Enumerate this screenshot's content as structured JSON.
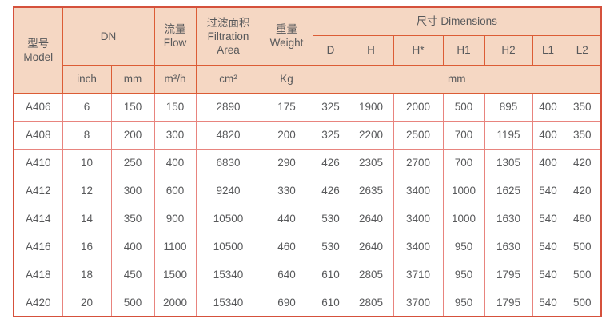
{
  "header": {
    "model": "型号\nModel",
    "dn": "DN",
    "flow": "流量\nFlow",
    "filtration": "过滤面积\nFiltration\nArea",
    "weight": "重量\nWeight",
    "dimensions": "尺寸 Dimensions",
    "dim_cols": [
      "D",
      "H",
      "H*",
      "H1",
      "H2",
      "L1",
      "L2"
    ],
    "units": {
      "inch": "inch",
      "mm": "mm",
      "flow": "m³/h",
      "area": "cm²",
      "weight": "Kg",
      "dims": "mm"
    }
  },
  "rows": [
    {
      "model": "A406",
      "inch": "6",
      "mm": "150",
      "flow": "150",
      "area": "2890",
      "weight": "175",
      "dims": [
        "325",
        "1900",
        "2000",
        "500",
        "895",
        "400",
        "350"
      ]
    },
    {
      "model": "A408",
      "inch": "8",
      "mm": "200",
      "flow": "300",
      "area": "4820",
      "weight": "200",
      "dims": [
        "325",
        "2200",
        "2500",
        "700",
        "1195",
        "400",
        "350"
      ]
    },
    {
      "model": "A410",
      "inch": "10",
      "mm": "250",
      "flow": "400",
      "area": "6830",
      "weight": "290",
      "dims": [
        "426",
        "2305",
        "2700",
        "700",
        "1305",
        "400",
        "420"
      ]
    },
    {
      "model": "A412",
      "inch": "12",
      "mm": "300",
      "flow": "600",
      "area": "9240",
      "weight": "330",
      "dims": [
        "426",
        "2635",
        "3400",
        "1000",
        "1625",
        "540",
        "420"
      ]
    },
    {
      "model": "A414",
      "inch": "14",
      "mm": "350",
      "flow": "900",
      "area": "10500",
      "weight": "440",
      "dims": [
        "530",
        "2640",
        "3400",
        "1000",
        "1630",
        "540",
        "480"
      ]
    },
    {
      "model": "A416",
      "inch": "16",
      "mm": "400",
      "flow": "1100",
      "area": "10500",
      "weight": "460",
      "dims": [
        "530",
        "2640",
        "3400",
        "950",
        "1630",
        "540",
        "500"
      ]
    },
    {
      "model": "A418",
      "inch": "18",
      "mm": "450",
      "flow": "1500",
      "area": "15340",
      "weight": "640",
      "dims": [
        "610",
        "2805",
        "3710",
        "950",
        "1795",
        "540",
        "500"
      ]
    },
    {
      "model": "A420",
      "inch": "20",
      "mm": "500",
      "flow": "2000",
      "area": "15340",
      "weight": "690",
      "dims": [
        "610",
        "2805",
        "3700",
        "950",
        "1795",
        "540",
        "500"
      ]
    }
  ],
  "colors": {
    "header_bg": "#f5d7c3",
    "outer_border": "#d5513c",
    "header_border": "#dc5c35",
    "body_border": "#e8847e",
    "text": "#58595b"
  }
}
